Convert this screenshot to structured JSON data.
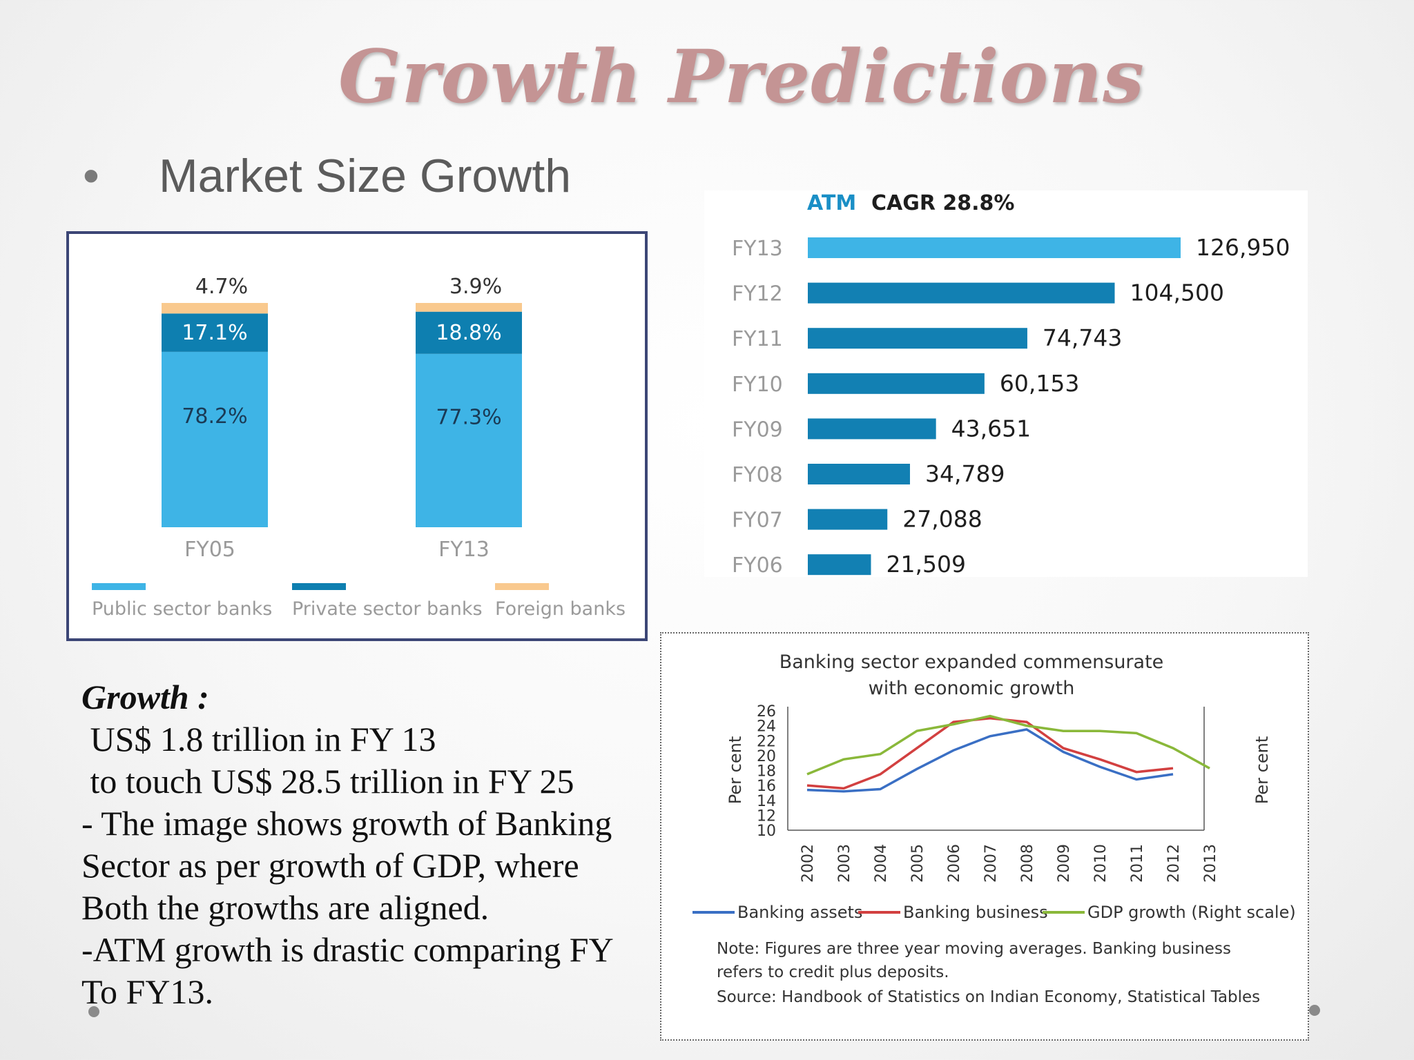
{
  "slide": {
    "title": "Growth Predictions",
    "bullet": "Market Size Growth"
  },
  "chart_data": [
    {
      "type": "bar",
      "stacked": true,
      "categories": [
        "FY05",
        "FY13"
      ],
      "series": [
        {
          "name": "Public sector banks",
          "values": [
            78.2,
            77.3
          ],
          "labels": [
            "78.2%",
            "77.3%"
          ],
          "color": "#3eb4e6"
        },
        {
          "name": "Private sector banks",
          "values": [
            17.1,
            18.8
          ],
          "labels": [
            "17.1%",
            "18.8%"
          ],
          "color": "#0e7fb0"
        },
        {
          "name": "Foreign banks",
          "values": [
            4.7,
            3.9
          ],
          "labels": [
            "4.7%",
            "3.9%"
          ],
          "color": "#f9c98e"
        }
      ],
      "ylim": [
        0,
        100
      ]
    },
    {
      "type": "bar",
      "orientation": "horizontal",
      "title_prefix": "ATM",
      "title": "CAGR 28.8%",
      "categories": [
        "FY13",
        "FY12",
        "FY11",
        "FY10",
        "FY09",
        "FY08",
        "FY07",
        "FY06"
      ],
      "values": [
        126950,
        104500,
        74743,
        60153,
        43651,
        34789,
        27088,
        21509
      ],
      "value_labels": [
        "126,950",
        "104,500",
        "74,743",
        "60,153",
        "43,651",
        "34,789",
        "27,088",
        "21,509"
      ],
      "colors": {
        "highlight": "#3eb4e6",
        "bar": "#1280b3",
        "title_accent": "#1a8fc6"
      }
    },
    {
      "type": "line",
      "title": "Banking sector expanded commensurate with economic growth",
      "ylabel": "Per cent",
      "ylabel_right": "Per cent",
      "x": [
        "2002",
        "2003",
        "2004",
        "2005",
        "2006",
        "2007",
        "2008",
        "2009",
        "2010",
        "2011",
        "2012",
        "2013"
      ],
      "y_ticks": [
        "26",
        "24",
        "22",
        "20",
        "18",
        "16",
        "14",
        "12",
        "10"
      ],
      "ylim": [
        10,
        26
      ],
      "series": [
        {
          "name": "Banking assets",
          "color": "#3a6fc4",
          "values": [
            15.4,
            15.2,
            15.5,
            18.2,
            20.7,
            22.6,
            23.5,
            20.5,
            18.5,
            16.8,
            17.5,
            null
          ]
        },
        {
          "name": "Banking business",
          "color": "#d24040",
          "values": [
            16.0,
            15.6,
            17.5,
            21.0,
            24.5,
            25.0,
            24.5,
            21.0,
            19.5,
            17.8,
            18.3,
            null
          ]
        },
        {
          "name": "GDP growth (Right scale)",
          "color": "#8ab83a",
          "values": [
            17.5,
            19.5,
            20.2,
            23.3,
            24.2,
            25.3,
            24.0,
            23.3,
            23.3,
            23.0,
            21.0,
            18.3
          ]
        }
      ],
      "note": "Note: Figures are three year moving averages. Banking business refers to credit plus deposits.",
      "source": "Source: Handbook of Statistics on Indian Economy, Statistical Tables"
    }
  ],
  "text_block": {
    "heading": "Growth :",
    "lines": [
      " US$ 1.8 trillion in FY 13",
      " to touch US$ 28.5 trillion in FY 25",
      "- The image shows growth of Banking",
      "Sector as per growth of GDP, where",
      "Both the growths are aligned.",
      "-ATM growth is drastic comparing FY",
      "To FY13."
    ]
  }
}
